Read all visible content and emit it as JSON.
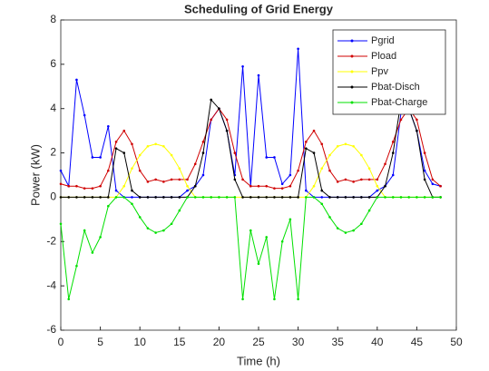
{
  "chart_data": {
    "type": "line",
    "title": "Scheduling of Grid Energy",
    "x_label": "Time (h)",
    "y_label": "Power (kW)",
    "x": [
      0,
      1,
      2,
      3,
      4,
      5,
      6,
      7,
      8,
      9,
      10,
      11,
      12,
      13,
      14,
      15,
      16,
      17,
      18,
      19,
      20,
      21,
      22,
      23,
      24,
      25,
      26,
      27,
      28,
      29,
      30,
      31,
      32,
      33,
      34,
      35,
      36,
      37,
      38,
      39,
      40,
      41,
      42,
      43,
      44,
      45,
      46,
      47,
      48
    ],
    "series": [
      {
        "name": "Pgrid",
        "color": "#0000ff",
        "values": [
          1.2,
          0.5,
          5.3,
          3.7,
          1.8,
          1.8,
          3.2,
          0.3,
          0,
          0,
          0,
          0,
          0,
          0,
          0,
          0,
          0.3,
          0.5,
          1,
          3.5,
          4,
          3,
          1,
          5.9,
          0.5,
          5.5,
          1.8,
          1.8,
          0.6,
          1,
          6.7,
          0.3,
          0,
          0,
          0,
          0,
          0,
          0,
          0,
          0,
          0.3,
          0.5,
          1,
          3.8,
          4,
          3,
          1.2,
          0.6,
          0.5
        ]
      },
      {
        "name": "Pload",
        "color": "#d00000",
        "values": [
          0.6,
          0.5,
          0.5,
          0.4,
          0.4,
          0.5,
          1.2,
          2.5,
          3,
          2.4,
          1.2,
          0.7,
          0.8,
          0.7,
          0.8,
          0.8,
          0.8,
          1.5,
          2.5,
          3.5,
          4,
          3.5,
          2,
          0.8,
          0.5,
          0.5,
          0.5,
          0.4,
          0.4,
          0.5,
          1.2,
          2.5,
          3,
          2.4,
          1.2,
          0.7,
          0.8,
          0.7,
          0.8,
          0.8,
          0.8,
          1.5,
          2.5,
          3.5,
          4,
          3.5,
          2,
          0.8,
          0.5
        ]
      },
      {
        "name": "Ppv",
        "color": "#ffff00",
        "values": [
          0,
          0,
          0,
          0,
          0,
          0,
          0,
          0,
          0.5,
          1.3,
          1.9,
          2.3,
          2.4,
          2.3,
          1.9,
          1.3,
          0.5,
          0,
          0,
          0,
          0,
          0,
          0,
          0,
          0,
          0,
          0,
          0,
          0,
          0,
          0,
          0,
          0.5,
          1.3,
          1.9,
          2.3,
          2.4,
          2.3,
          1.9,
          1.3,
          0.5,
          0,
          0,
          0,
          0,
          0,
          0,
          0,
          0
        ]
      },
      {
        "name": "Pbat-Disch",
        "color": "#000000",
        "values": [
          0,
          0,
          0,
          0,
          0,
          0,
          0,
          2.2,
          2,
          0.3,
          0,
          0,
          0,
          0,
          0,
          0,
          0,
          0.5,
          2,
          4.4,
          4,
          3,
          0.8,
          0,
          0,
          0,
          0,
          0,
          0,
          0,
          0,
          2.2,
          2,
          0.3,
          0,
          0,
          0,
          0,
          0,
          0,
          0,
          0.5,
          2,
          4.3,
          4,
          3,
          0.8,
          0,
          0
        ]
      },
      {
        "name": "Pbat-Charge",
        "color": "#00e000",
        "values": [
          -1.2,
          -4.6,
          -3.1,
          -1.5,
          -2.5,
          -1.8,
          -0.4,
          0,
          0,
          -0.3,
          -0.9,
          -1.4,
          -1.6,
          -1.5,
          -1.2,
          -0.6,
          0,
          0,
          0,
          0,
          0,
          0,
          0,
          -4.6,
          -1.5,
          -3,
          -1.8,
          -4.6,
          -2,
          -1,
          -4.6,
          0,
          0,
          -0.3,
          -0.9,
          -1.4,
          -1.6,
          -1.5,
          -1.2,
          -0.6,
          0,
          0,
          0,
          0,
          0,
          0,
          0,
          0,
          0
        ]
      }
    ],
    "xlim": [
      0,
      50
    ],
    "xticks": [
      0,
      5,
      10,
      15,
      20,
      25,
      30,
      35,
      40,
      45,
      50
    ],
    "ylim": [
      -6,
      8
    ],
    "yticks": [
      -6,
      -4,
      -2,
      0,
      2,
      4,
      6,
      8
    ],
    "legend": "upper right"
  }
}
